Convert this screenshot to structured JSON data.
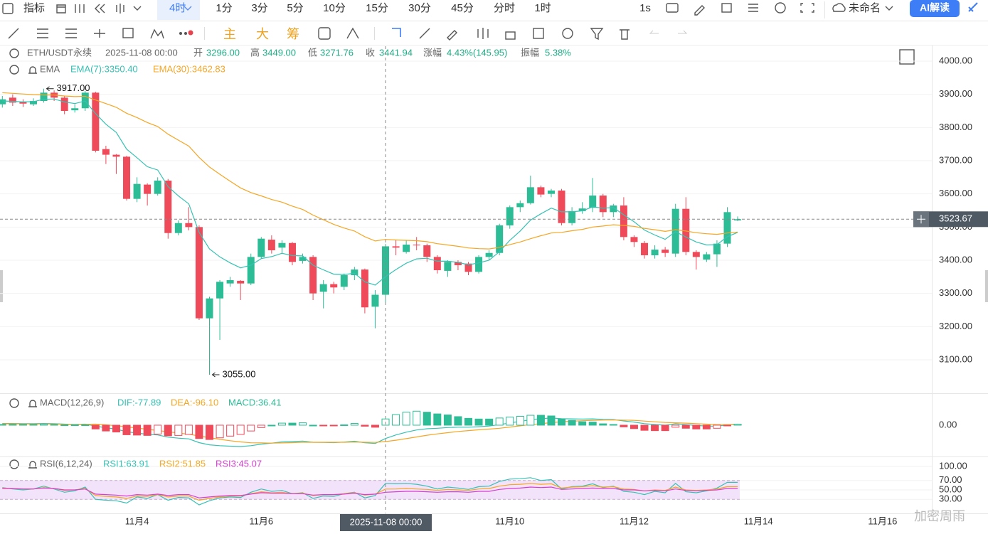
{
  "toolbar": {
    "indicators": "指标",
    "interval": "4时",
    "periods": [
      "1分",
      "3分",
      "5分",
      "10分",
      "15分",
      "30分",
      "45分",
      "分时",
      "1时"
    ],
    "speed": "1s",
    "layout_name": "未命名",
    "ai": "AI解读"
  },
  "drawing_tools": {
    "main": "主",
    "big": "大",
    "chips": "筹"
  },
  "info": {
    "symbol": "ETH/USDT永续",
    "time": "2025-11-08 00:00",
    "fields": [
      {
        "label": "开",
        "value": "3296.00"
      },
      {
        "label": "高",
        "value": "3449.00"
      },
      {
        "label": "低",
        "value": "3271.76"
      },
      {
        "label": "收",
        "value": "3441.94"
      },
      {
        "label": "涨幅",
        "value": "4.43%(145.95)"
      },
      {
        "label": "振幅",
        "value": "5.38%"
      }
    ]
  },
  "watermark": "加密周雨",
  "chart_data": [
    {
      "type": "candlestick",
      "title": "EMA",
      "up_color": "#2dbd96",
      "down_color": "#ef4a5a",
      "grid": true,
      "open": [
        3870,
        3890,
        3878,
        3870,
        3880,
        3905,
        3890,
        3852,
        3858,
        3905,
        3735,
        3718,
        3712,
        3585,
        3628,
        3600,
        3640,
        3482,
        3512,
        3500,
        3225,
        3285,
        3330,
        3338,
        3330,
        3410,
        3462,
        3438,
        3452,
        3398,
        3410,
        3305,
        3328,
        3320,
        3355,
        3372,
        3260,
        3296,
        3442,
        3425,
        3447,
        3445,
        3410,
        3368,
        3395,
        3390,
        3365,
        3410,
        3422,
        3505,
        3560,
        3572,
        3620,
        3600,
        3610,
        3512,
        3548,
        3558,
        3595,
        3545,
        3565,
        3470,
        3452,
        3415,
        3432,
        3420,
        3555,
        3425,
        3402,
        3418,
        3450,
        3520
      ],
      "high": [
        3895,
        3900,
        3885,
        3888,
        3917,
        3912,
        3895,
        3870,
        3910,
        3908,
        3745,
        3720,
        3715,
        3650,
        3632,
        3650,
        3645,
        3520,
        3560,
        3505,
        3290,
        3340,
        3350,
        3340,
        3420,
        3470,
        3475,
        3460,
        3455,
        3420,
        3415,
        3340,
        3335,
        3360,
        3380,
        3375,
        3310,
        3449,
        3460,
        3460,
        3470,
        3450,
        3415,
        3400,
        3400,
        3395,
        3415,
        3430,
        3510,
        3565,
        3580,
        3655,
        3625,
        3615,
        3615,
        3560,
        3575,
        3648,
        3600,
        3570,
        3590,
        3475,
        3458,
        3445,
        3440,
        3570,
        3590,
        3430,
        3425,
        3460,
        3560,
        3532
      ],
      "low": [
        3860,
        3865,
        3862,
        3865,
        3875,
        3880,
        3840,
        3845,
        3850,
        3725,
        3690,
        3660,
        3580,
        3575,
        3565,
        3595,
        3465,
        3475,
        3490,
        3220,
        3055,
        3160,
        3320,
        3280,
        3325,
        3405,
        3420,
        3420,
        3385,
        3390,
        3280,
        3255,
        3300,
        3310,
        3340,
        3240,
        3195,
        3271.76,
        3415,
        3420,
        3430,
        3395,
        3360,
        3350,
        3370,
        3355,
        3360,
        3400,
        3415,
        3495,
        3545,
        3568,
        3590,
        3590,
        3505,
        3505,
        3540,
        3545,
        3530,
        3530,
        3460,
        3440,
        3405,
        3405,
        3410,
        3410,
        3415,
        3372,
        3395,
        3380,
        3440,
        3518
      ],
      "close": [
        3885,
        3875,
        3872,
        3880,
        3905,
        3890,
        3850,
        3858,
        3905,
        3730,
        3718,
        3712,
        3585,
        3630,
        3600,
        3640,
        3482,
        3512,
        3500,
        3225,
        3285,
        3335,
        3340,
        3330,
        3410,
        3465,
        3430,
        3452,
        3395,
        3410,
        3300,
        3328,
        3318,
        3355,
        3372,
        3258,
        3296,
        3441.94,
        3438,
        3447,
        3445,
        3410,
        3370,
        3395,
        3385,
        3365,
        3410,
        3422,
        3505,
        3560,
        3572,
        3620,
        3598,
        3610,
        3512,
        3548,
        3556,
        3595,
        3545,
        3565,
        3470,
        3455,
        3415,
        3432,
        3422,
        3555,
        3425,
        3410,
        3418,
        3450,
        3545,
        3523.67
      ],
      "series": [
        {
          "name": "EMA(7):3350.40",
          "color": "#36c2b4",
          "values": [
            3880,
            3879,
            3877,
            3878,
            3885,
            3886,
            3877,
            3872,
            3880,
            3842,
            3810,
            3785,
            3735,
            3709,
            3682,
            3672,
            3622,
            3594,
            3570,
            3484,
            3434,
            3410,
            3392,
            3377,
            3385,
            3405,
            3411,
            3421,
            3414,
            3413,
            3385,
            3371,
            3358,
            3357,
            3361,
            3335,
            3325,
            3350.4,
            3372,
            3391,
            3404,
            3406,
            3397,
            3397,
            3394,
            3386,
            3392,
            3400,
            3426,
            3460,
            3488,
            3521,
            3540,
            3557,
            3546,
            3546,
            3549,
            3561,
            3557,
            3559,
            3537,
            3516,
            3491,
            3476,
            3463,
            3486,
            3470,
            3455,
            3446,
            3447,
            3471,
            3484
          ]
        },
        {
          "name": "EMA(30):3462.83",
          "color": "#f5a623",
          "values": [
            3905,
            3903,
            3901,
            3899,
            3898,
            3898,
            3895,
            3893,
            3894,
            3883,
            3872,
            3861,
            3843,
            3830,
            3815,
            3803,
            3780,
            3762,
            3744,
            3710,
            3681,
            3659,
            3638,
            3618,
            3604,
            3594,
            3583,
            3575,
            3563,
            3553,
            3536,
            3522,
            3508,
            3497,
            3488,
            3471,
            3458,
            3462.83,
            3461,
            3460,
            3459,
            3456,
            3450,
            3446,
            3442,
            3437,
            3435,
            3434,
            3439,
            3447,
            3455,
            3465,
            3474,
            3482,
            3484,
            3489,
            3493,
            3500,
            3503,
            3507,
            3505,
            3502,
            3496,
            3492,
            3487,
            3492,
            3488,
            3483,
            3480,
            3478,
            3482,
            3485
          ]
        }
      ],
      "annotations": [
        {
          "value": 3917,
          "label": "3917.00",
          "of": "high"
        },
        {
          "value": 3055,
          "label": "3055.00",
          "of": "low"
        }
      ],
      "last_price_label": "3523.67",
      "ylim": [
        3010,
        4045
      ],
      "yticks": [
        {
          "value": 3100,
          "label": "3100.00"
        },
        {
          "value": 3200,
          "label": "3200.00"
        },
        {
          "value": 3300,
          "label": "3300.00"
        },
        {
          "value": 3400,
          "label": "3400.00"
        },
        {
          "value": 3500,
          "label": "3500.00"
        },
        {
          "value": 3600,
          "label": "3600.00"
        },
        {
          "value": 3700,
          "label": "3700.00"
        },
        {
          "value": 3800,
          "label": "3800.00"
        },
        {
          "value": 3900,
          "label": "3900.00"
        },
        {
          "value": 4000,
          "label": "4000.00"
        }
      ],
      "xticks": [
        {
          "value": 13,
          "label": "11月4"
        },
        {
          "value": 25,
          "label": "11月6"
        },
        {
          "value": 49,
          "label": "11月10"
        },
        {
          "value": 61,
          "label": "11月12"
        },
        {
          "value": 73,
          "label": "11月14"
        },
        {
          "value": 85,
          "label": "11月16"
        }
      ]
    },
    {
      "type": "bar",
      "title": "MACD(12,26,9)",
      "down_color": "#ef4a5a",
      "grid": false,
      "series": [
        {
          "name": "DIF:-77.89",
          "color": "#36c2b4",
          "kind": "line",
          "values": [
            10,
            10,
            9,
            9,
            10,
            9,
            6,
            4,
            6,
            -5,
            -15,
            -23,
            -38,
            -46,
            -54,
            -57,
            -70,
            -76,
            -80,
            -102,
            -115,
            -120,
            -123,
            -125,
            -120,
            -111,
            -105,
            -98,
            -96,
            -93,
            -100,
            -101,
            -102,
            -99,
            -94,
            -103,
            -107,
            -77.89,
            -57,
            -41,
            -28,
            -21,
            -18,
            -14,
            -12,
            -12,
            -9,
            -5,
            3,
            13,
            22,
            32,
            38,
            42,
            38,
            37,
            36,
            37,
            34,
            33,
            25,
            18,
            9,
            4,
            0,
            8,
            3,
            -2,
            -5,
            -6,
            2,
            6
          ]
        },
        {
          "name": "DEA:-96.10",
          "color": "#f5a623",
          "kind": "line",
          "values": [
            8,
            8,
            7,
            7,
            7,
            7,
            5,
            3,
            5,
            6,
            2,
            -3,
            -10,
            -17,
            -24,
            -31,
            -39,
            -46,
            -53,
            -63,
            -73,
            -83,
            -91,
            -98,
            -103,
            -104,
            -105,
            -104,
            -102,
            -100,
            -100,
            -100,
            -100,
            -100,
            -99,
            -100,
            -101,
            -96.1,
            -88,
            -79,
            -69,
            -59,
            -51,
            -44,
            -37,
            -32,
            -27,
            -23,
            -18,
            -11,
            -4,
            3,
            9,
            15,
            20,
            23,
            26,
            28,
            30,
            31,
            30,
            28,
            24,
            20,
            16,
            14,
            12,
            9,
            6,
            3,
            3,
            3
          ]
        },
        {
          "name": "MACD:36.41",
          "color": "#2dbd96",
          "kind": "bar",
          "values": [
            4,
            4,
            4,
            4,
            6,
            4,
            2,
            2,
            2,
            -22,
            -34,
            -40,
            -56,
            -58,
            -60,
            -52,
            -62,
            -60,
            -54,
            -78,
            -84,
            -74,
            -64,
            -54,
            -34,
            -14,
            0,
            12,
            12,
            14,
            0,
            -2,
            -4,
            2,
            10,
            -6,
            -12,
            36.41,
            62,
            76,
            82,
            76,
            66,
            60,
            50,
            40,
            36,
            36,
            42,
            48,
            52,
            58,
            58,
            54,
            36,
            28,
            20,
            18,
            8,
            4,
            -10,
            -20,
            -30,
            -32,
            -32,
            -12,
            -18,
            -22,
            -22,
            -18,
            -2,
            6
          ]
        }
      ],
      "ylim": [
        -175,
        158
      ],
      "yticks": [
        {
          "value": 0,
          "label": "0.00"
        }
      ]
    },
    {
      "type": "line",
      "title": "RSI(6,12,24)",
      "grid": true,
      "band": [
        30,
        70
      ],
      "band_color": "#f3e3fa",
      "series": [
        {
          "name": "RSI1:63.91",
          "color": "#36c2b4",
          "values": [
            55,
            52,
            50,
            52,
            58,
            52,
            45,
            48,
            56,
            30,
            28,
            27,
            22,
            35,
            32,
            40,
            28,
            34,
            33,
            18,
            27,
            33,
            35,
            34,
            45,
            52,
            47,
            49,
            42,
            44,
            32,
            37,
            36,
            42,
            45,
            33,
            38,
            63.91,
            63,
            64,
            62,
            58,
            52,
            56,
            54,
            51,
            57,
            58,
            68,
            73,
            74,
            76,
            70,
            72,
            52,
            57,
            58,
            63,
            55,
            58,
            47,
            45,
            40,
            47,
            44,
            64,
            46,
            44,
            48,
            54,
            66,
            66
          ]
        },
        {
          "name": "RSI2:51.85",
          "color": "#f5a623",
          "values": [
            54,
            53,
            52,
            52,
            55,
            53,
            49,
            50,
            53,
            38,
            36,
            35,
            32,
            37,
            36,
            40,
            35,
            37,
            37,
            28,
            32,
            35,
            37,
            37,
            42,
            46,
            44,
            45,
            42,
            43,
            38,
            40,
            40,
            42,
            44,
            39,
            41,
            51.85,
            52,
            53,
            52,
            51,
            49,
            51,
            50,
            49,
            52,
            53,
            58,
            61,
            62,
            64,
            62,
            63,
            54,
            56,
            57,
            59,
            56,
            57,
            52,
            51,
            48,
            50,
            49,
            56,
            50,
            49,
            50,
            52,
            57,
            57
          ]
        },
        {
          "name": "RSI3:45.07",
          "color": "#d53fd0",
          "values": [
            53,
            53,
            52,
            52,
            54,
            53,
            50,
            50,
            52,
            41,
            40,
            39,
            37,
            40,
            39,
            41,
            38,
            40,
            40,
            33,
            35,
            37,
            38,
            38,
            41,
            44,
            43,
            43,
            42,
            42,
            39,
            40,
            40,
            41,
            43,
            40,
            41,
            45.07,
            46,
            47,
            47,
            46,
            45,
            46,
            46,
            45,
            47,
            47,
            51,
            53,
            54,
            56,
            55,
            56,
            51,
            52,
            53,
            54,
            53,
            53,
            50,
            50,
            48,
            49,
            48,
            52,
            49,
            48,
            49,
            50,
            53,
            53
          ]
        }
      ],
      "ylim": [
        0,
        100
      ],
      "yticks": [
        {
          "value": 30,
          "label": "30.00"
        },
        {
          "value": 50,
          "label": "50.00"
        },
        {
          "value": 70,
          "label": "70.00"
        },
        {
          "value": 100,
          "label": "100.00"
        }
      ]
    }
  ]
}
